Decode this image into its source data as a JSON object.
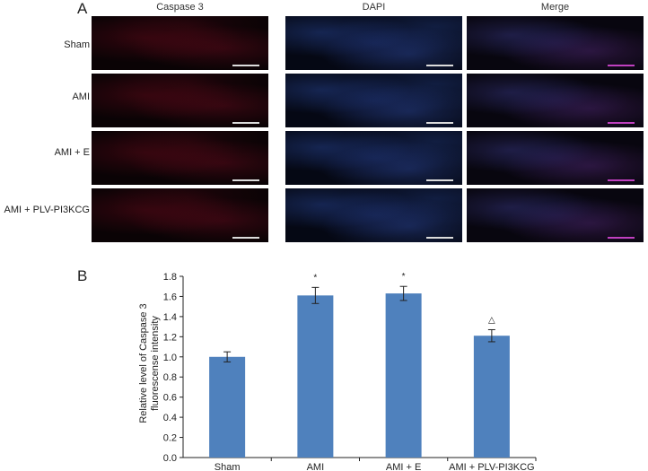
{
  "panel_a": {
    "letter": "A",
    "columns": [
      "Caspase 3",
      "DAPI",
      "Merge"
    ],
    "rows": [
      "Sham",
      "AMI",
      "AMI + E",
      "AMI + PLV-PI3KCG"
    ]
  },
  "panel_b": {
    "letter": "B"
  },
  "chart_data": {
    "type": "bar",
    "categories": [
      "Sham",
      "AMI",
      "AMI + E",
      "AMI + PLV-PI3KCG"
    ],
    "values": [
      1.0,
      1.61,
      1.63,
      1.21
    ],
    "errors": [
      0.05,
      0.08,
      0.07,
      0.06
    ],
    "annotations": [
      "",
      "*",
      "*",
      "△"
    ],
    "title": "",
    "xlabel": "",
    "ylabel": "Relative level of Caspase 3 fluorescense intensity",
    "ylabel_lines": [
      "Relative level of Caspase 3",
      "fluorescense intensity"
    ],
    "ylim": [
      0,
      1.8
    ],
    "yticks": [
      "0.0",
      "0.2",
      "0.4",
      "0.6",
      "0.8",
      "1.0",
      "1.2",
      "1.4",
      "1.6",
      "1.8"
    ],
    "bar_color": "#4f81bd",
    "grid": false
  }
}
